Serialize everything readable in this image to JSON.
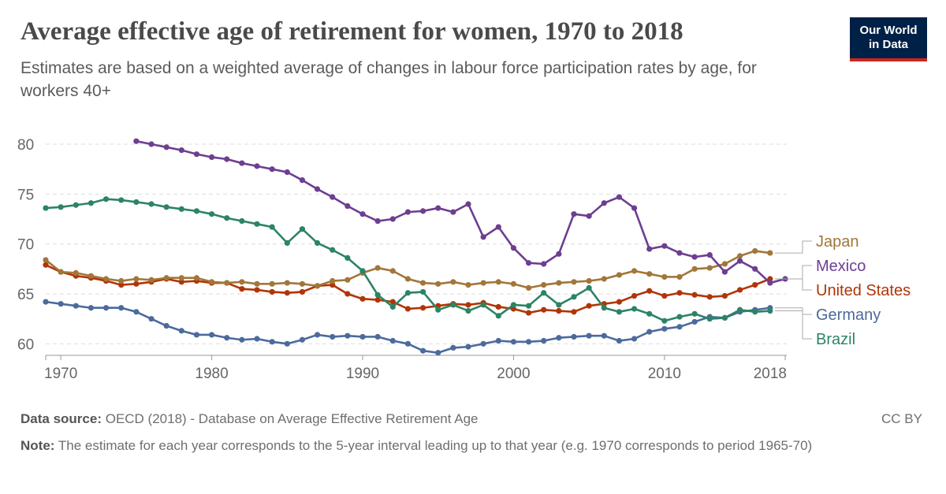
{
  "header": {
    "title": "Average effective age of retirement for women, 1970 to 2018",
    "subtitle": "Estimates are based on a weighted average of changes in labour force participation rates by age, for workers 40+",
    "logo_line1": "Our World",
    "logo_line2": "in Data"
  },
  "footer": {
    "source_label": "Data source:",
    "source_text": "OECD (2018) - Database on Average Effective Retirement Age",
    "license": "CC BY",
    "note_label": "Note:",
    "note_text": "The estimate for each year corresponds to the 5-year interval leading up to that year (e.g. 1970 corresponds to period 1965-70)"
  },
  "chart_data": {
    "type": "line",
    "xlim": [
      1969,
      2018
    ],
    "ylim": [
      59,
      81.5
    ],
    "x_ticks": [
      1970,
      1980,
      1990,
      2000,
      2010,
      2018
    ],
    "y_ticks": [
      60,
      65,
      70,
      75,
      80
    ],
    "grid": "horizontal dashed",
    "legend": "right end labels",
    "series": [
      {
        "name": "Japan",
        "color": "#a2763a",
        "start": 1969,
        "values": [
          68.4,
          67.2,
          67.1,
          66.8,
          66.5,
          66.3,
          66.5,
          66.4,
          66.6,
          66.6,
          66.6,
          66.2,
          66.1,
          66.2,
          66.0,
          66.0,
          66.1,
          66.0,
          65.8,
          66.3,
          66.4,
          67.1,
          67.6,
          67.3,
          66.5,
          66.1,
          66.0,
          66.2,
          65.9,
          66.1,
          66.2,
          66.0,
          65.6,
          65.9,
          66.1,
          66.2,
          66.3,
          66.5,
          66.9,
          67.3,
          67.0,
          66.7,
          66.7,
          67.5,
          67.6,
          68.0,
          68.8,
          69.3,
          69.1
        ]
      },
      {
        "name": "Mexico",
        "color": "#6d3e91",
        "start": 1975,
        "values": [
          80.3,
          80.0,
          79.7,
          79.4,
          79.0,
          78.7,
          78.5,
          78.1,
          77.8,
          77.5,
          77.2,
          76.4,
          75.5,
          74.7,
          73.8,
          73.0,
          72.3,
          72.5,
          73.2,
          73.3,
          73.6,
          73.2,
          74.0,
          70.7,
          71.7,
          69.6,
          68.1,
          68.0,
          69.0,
          73.0,
          72.8,
          74.1,
          74.7,
          73.6,
          69.5,
          69.8,
          69.1,
          68.7,
          68.9,
          67.2,
          68.3,
          67.5,
          66.1,
          66.5
        ]
      },
      {
        "name": "United States",
        "color": "#b13507",
        "start": 1969,
        "values": [
          67.9,
          67.2,
          66.8,
          66.6,
          66.3,
          65.9,
          66.0,
          66.2,
          66.5,
          66.2,
          66.3,
          66.1,
          66.1,
          65.5,
          65.4,
          65.2,
          65.1,
          65.2,
          65.8,
          65.9,
          65.0,
          64.5,
          64.4,
          64.2,
          63.5,
          63.6,
          63.8,
          64.0,
          63.9,
          64.1,
          63.7,
          63.5,
          63.1,
          63.4,
          63.3,
          63.2,
          63.8,
          64.0,
          64.2,
          64.8,
          65.3,
          64.8,
          65.1,
          64.9,
          64.7,
          64.8,
          65.4,
          65.9,
          66.5
        ]
      },
      {
        "name": "Germany",
        "color": "#4c6a9c",
        "start": 1969,
        "values": [
          64.2,
          64.0,
          63.8,
          63.6,
          63.6,
          63.6,
          63.2,
          62.5,
          61.8,
          61.3,
          60.9,
          60.9,
          60.6,
          60.4,
          60.5,
          60.2,
          60.0,
          60.4,
          60.9,
          60.7,
          60.8,
          60.7,
          60.7,
          60.3,
          60.0,
          59.3,
          59.1,
          59.6,
          59.7,
          60.0,
          60.3,
          60.2,
          60.2,
          60.3,
          60.6,
          60.7,
          60.8,
          60.8,
          60.3,
          60.5,
          61.2,
          61.5,
          61.7,
          62.2,
          62.7,
          62.6,
          63.2,
          63.4,
          63.6
        ]
      },
      {
        "name": "Brazil",
        "color": "#2c8465",
        "start": 1969,
        "values": [
          73.6,
          73.7,
          73.9,
          74.1,
          74.5,
          74.4,
          74.2,
          74.0,
          73.7,
          73.5,
          73.3,
          73.0,
          72.6,
          72.3,
          72.0,
          71.7,
          70.1,
          71.5,
          70.1,
          69.4,
          68.6,
          67.3,
          64.9,
          63.7,
          65.1,
          65.2,
          63.4,
          63.9,
          63.3,
          63.9,
          62.8,
          63.9,
          63.8,
          65.1,
          63.9,
          64.7,
          65.6,
          63.6,
          63.2,
          63.5,
          63.0,
          62.3,
          62.7,
          63.0,
          62.5,
          62.6,
          63.4,
          63.2,
          63.3
        ]
      }
    ]
  }
}
